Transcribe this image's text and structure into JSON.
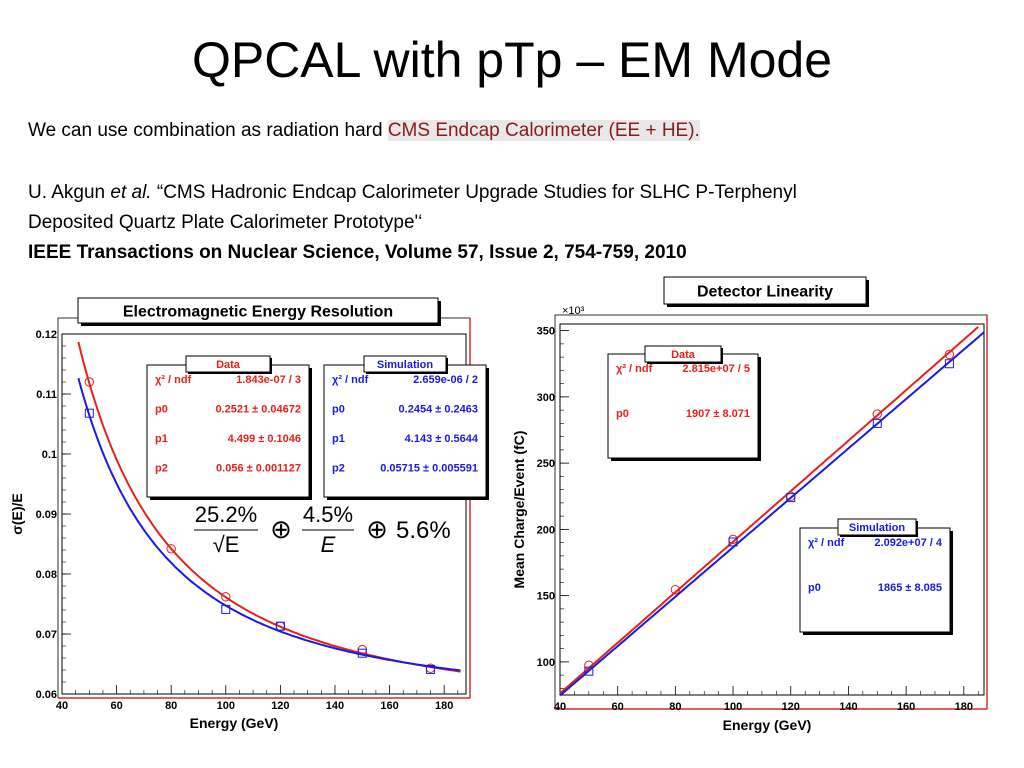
{
  "slide": {
    "title": "QPCAL with pTp – EM Mode",
    "line1_prefix": "We can use combination as radiation hard ",
    "line1_highlight": "CMS Endcap Calorimeter (EE + HE).",
    "ref_author": "U. Akgun ",
    "ref_etal": "et al.",
    "ref_title_1": " “CMS Hadronic Endcap Calorimeter Upgrade Studies for SLHC P-Terphenyl",
    "ref_title_2": "Deposited Quartz Plate Calorimeter Prototype'‘",
    "journal": "IEEE Transactions on Nuclear Science, Volume 57, Issue 2, 754-759, 2010"
  },
  "colors": {
    "data": "#e8201a",
    "simulation": "#1a1ae8",
    "axis_right": "#cc0000"
  },
  "chart_data": [
    {
      "type": "scatter",
      "title": "Electromagnetic Energy Resolution",
      "xlabel": "Energy (GeV)",
      "ylabel": "σ(E)/E",
      "xlim": [
        40,
        188
      ],
      "ylim": [
        0.06,
        0.12
      ],
      "xticks": [
        "40",
        "60",
        "80",
        "100",
        "120",
        "140",
        "160",
        "180"
      ],
      "yticks": [
        "0.06",
        "0.07",
        "0.08",
        "0.09",
        "0.1",
        "0.11",
        "0.12"
      ],
      "formula": {
        "a": "25.2%",
        "b": "4.5%",
        "c": "5.6%",
        "den_a": "√E",
        "den_b": "E",
        "oplus": "⊕"
      },
      "series": [
        {
          "name": "Data",
          "marker": "circle",
          "x": [
            50,
            80,
            100,
            120,
            150,
            175
          ],
          "y": [
            0.112,
            0.0842,
            0.0762,
            0.0713,
            0.0674,
            0.0643
          ],
          "fit": {
            "p0": 0.2521,
            "p1": 4.499,
            "p2": 0.056,
            "x_from": 46,
            "x_to": 186
          },
          "stats": [
            {
              "label": "χ² / ndf",
              "value": "1.843e-07 / 3"
            },
            {
              "label": "p0",
              "value": "0.2521 ± 0.04672"
            },
            {
              "label": "p1",
              "value": "4.499 ± 0.1046"
            },
            {
              "label": "p2",
              "value": "0.056 ± 0.001127"
            }
          ]
        },
        {
          "name": "Simulation",
          "marker": "square",
          "x": [
            50,
            100,
            120,
            150,
            175
          ],
          "y": [
            0.1068,
            0.0741,
            0.0713,
            0.0668,
            0.0641
          ],
          "fit": {
            "p0": 0.2454,
            "p1": 4.143,
            "p2": 0.05715,
            "x_from": 46,
            "x_to": 186
          },
          "stats": [
            {
              "label": "χ² / ndf",
              "value": "2.659e-06 / 2"
            },
            {
              "label": "p0",
              "value": "0.2454 ± 0.2463"
            },
            {
              "label": "p1",
              "value": "4.143 ± 0.5644"
            },
            {
              "label": "p2",
              "value": "0.05715 ± 0.005591"
            }
          ]
        }
      ]
    },
    {
      "type": "scatter",
      "title": "Detector Linearity",
      "xlabel": "Energy (GeV)",
      "ylabel": "Mean Charge/Event (fC)",
      "multiplier": "×10³",
      "xlim": [
        40,
        187
      ],
      "ylim": [
        75,
        355
      ],
      "xticks": [
        "40",
        "60",
        "80",
        "100",
        "120",
        "140",
        "160",
        "180"
      ],
      "yticks": [
        "100",
        "150",
        "200",
        "250",
        "300",
        "350"
      ],
      "series": [
        {
          "name": "Data",
          "marker": "circle",
          "x": [
            50,
            80,
            100,
            120,
            150,
            175
          ],
          "y": [
            97.5,
            154.5,
            192.5,
            225,
            287,
            332
          ],
          "fit": {
            "slope": 1.907,
            "x_from": 40,
            "x_to": 185
          },
          "stats": [
            {
              "label": "χ² / ndf",
              "value": "2.815e+07 / 5"
            },
            {
              "label": "p0",
              "value": "1907 ± 8.071"
            }
          ]
        },
        {
          "name": "Simulation",
          "marker": "square",
          "x": [
            50,
            100,
            120,
            150,
            175
          ],
          "y": [
            93,
            190.5,
            224,
            280,
            325
          ],
          "fit": {
            "slope": 1.865,
            "x_from": 40,
            "x_to": 187
          },
          "stats": [
            {
              "label": "χ² / ndf",
              "value": "2.092e+07 / 4"
            },
            {
              "label": "p0",
              "value": "1865 ± 8.085"
            }
          ]
        }
      ]
    }
  ]
}
